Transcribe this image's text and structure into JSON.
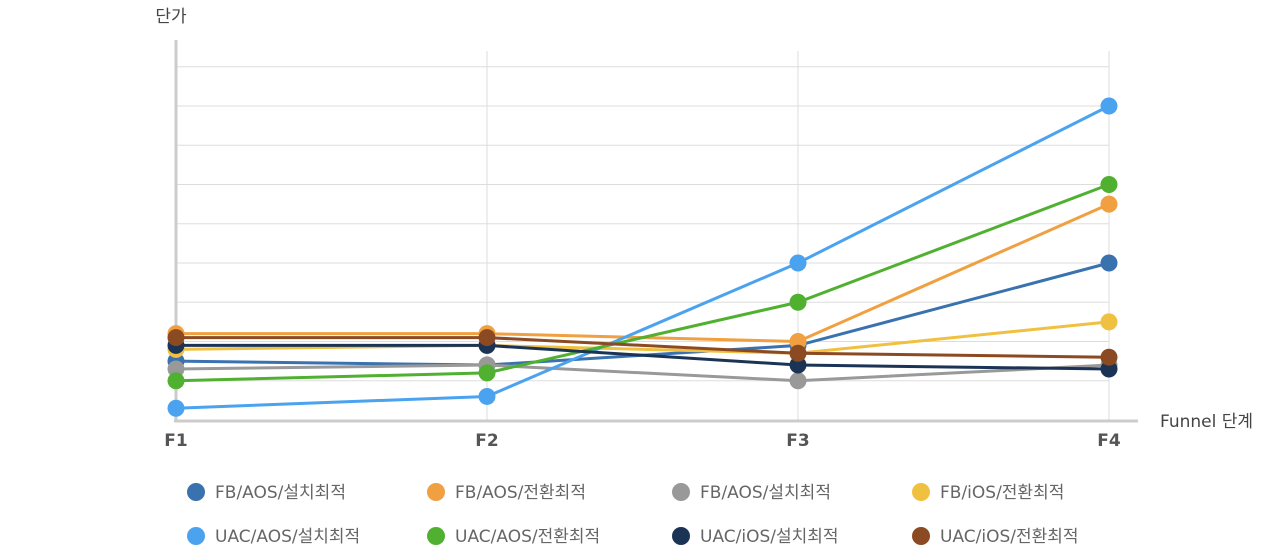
{
  "chart_data": {
    "type": "line",
    "title": "",
    "xlabel": "Funnel 단계",
    "ylabel": "단가",
    "categories": [
      "F1",
      "F2",
      "F3",
      "F4"
    ],
    "ylim": [
      0,
      9.4
    ],
    "y_ticks": [
      0,
      1,
      2,
      3,
      4,
      5,
      6,
      7,
      8,
      9
    ],
    "grid": true,
    "legend_position": "bottom",
    "series": [
      {
        "name": "FB/AOS/설치최적",
        "color": "#3a72b0",
        "values": [
          1.5,
          1.4,
          1.9,
          4.0
        ]
      },
      {
        "name": "FB/AOS/전환최적",
        "color": "#f0a040",
        "values": [
          2.2,
          2.2,
          2.0,
          5.5
        ]
      },
      {
        "name": "FB/AOS/설치최적",
        "color": "#999999",
        "values": [
          1.3,
          1.4,
          1.0,
          1.4
        ]
      },
      {
        "name": "FB/iOS/전환최적",
        "color": "#f0c040",
        "values": [
          1.8,
          1.9,
          1.7,
          2.5
        ]
      },
      {
        "name": "UAC/AOS/설치최적",
        "color": "#4ba3f0",
        "values": [
          0.3,
          0.6,
          4.0,
          8.0
        ]
      },
      {
        "name": "UAC/AOS/전환최적",
        "color": "#50b030",
        "values": [
          1.0,
          1.2,
          3.0,
          6.0
        ]
      },
      {
        "name": "UAC/iOS/설치최적",
        "color": "#1b3456",
        "values": [
          1.9,
          1.9,
          1.4,
          1.3
        ]
      },
      {
        "name": "UAC/iOS/전환최적",
        "color": "#8b4a22",
        "values": [
          2.1,
          2.1,
          1.7,
          1.6
        ]
      }
    ]
  }
}
